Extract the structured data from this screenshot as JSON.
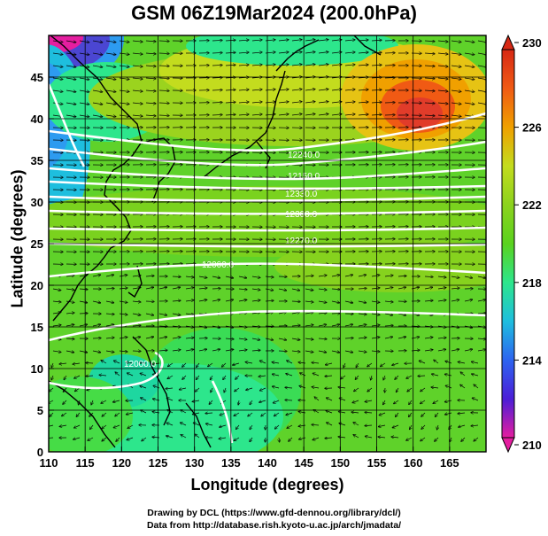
{
  "title": "GSM 06Z19Mar2024 (200.0hPa)",
  "credits": {
    "line1": "Drawing by DCL (https://www.gfd-dennou.org/library/dcl/)",
    "line2": "Data from http://database.rish.kyoto-u.ac.jp/arch/jmadata/"
  },
  "chart_data": {
    "type": "heatmap",
    "title": "GSM 06Z19Mar2024 (200.0hPa)",
    "xlabel": "Longitude (degrees)",
    "ylabel": "Latitude  (degrees)",
    "xlim": [
      110,
      170
    ],
    "ylim": [
      0,
      50
    ],
    "x_ticks": [
      110,
      115,
      120,
      125,
      130,
      135,
      140,
      145,
      150,
      155,
      160,
      165
    ],
    "y_ticks": [
      0,
      5,
      10,
      15,
      20,
      25,
      30,
      35,
      40,
      45
    ],
    "grid": true,
    "layers": [
      "temperature shading",
      "wind vectors",
      "geopotential height contours",
      "coastlines"
    ],
    "colorbar": {
      "min": 210,
      "max": 230,
      "ticks": [
        210,
        214,
        218,
        222,
        226,
        230
      ],
      "colors": [
        "#e51ea0",
        "#4b1ed7",
        "#2d64f0",
        "#1ebede",
        "#2de68c",
        "#5ad21e",
        "#8cd21e",
        "#c3dc1e",
        "#f0a000",
        "#f05a14",
        "#d72814"
      ]
    },
    "contour_labels": [
      "12240.0",
      "12150.0",
      "12330.0",
      "12300.0",
      "12270.0",
      "12000.0",
      "12000.0"
    ],
    "colors": {
      "background_green": "#5fd22a",
      "contour": "#ffffff",
      "coastline": "#000000",
      "vector": "#000000"
    }
  }
}
